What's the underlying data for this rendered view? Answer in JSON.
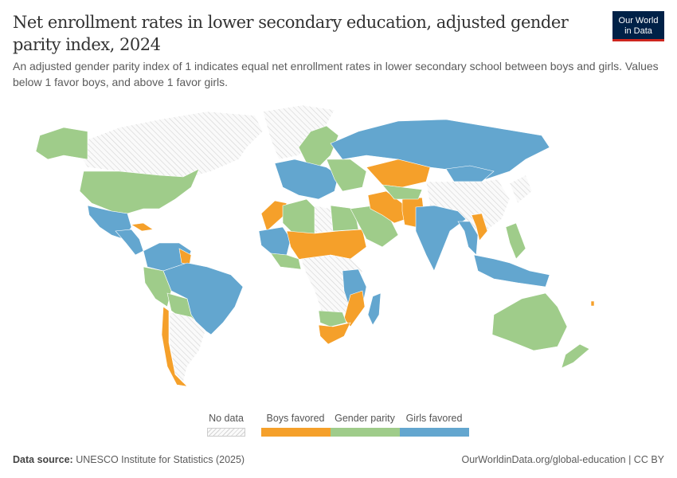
{
  "header": {
    "title": "Net enrollment rates in lower secondary education, adjusted gender parity index, 2024",
    "subtitle": "An adjusted gender parity index of 1 indicates equal net enrollment rates in lower secondary school between boys and girls. Values below 1 favor boys, and above 1 favor girls.",
    "logo_line1": "Our World",
    "logo_line2": "in Data"
  },
  "legend": {
    "no_data": {
      "label": "No data",
      "color": "#eeeeee"
    },
    "categories": [
      {
        "label": "Boys favored",
        "color": "#f5a02a"
      },
      {
        "label": "Gender parity",
        "color": "#9fcc8a"
      },
      {
        "label": "Girls favored",
        "color": "#63a6cf"
      }
    ]
  },
  "footer": {
    "source_label": "Data source:",
    "source_text": "UNESCO Institute for Statistics (2025)",
    "url_license": "OurWorldinData.org/global-education | CC BY"
  }
}
